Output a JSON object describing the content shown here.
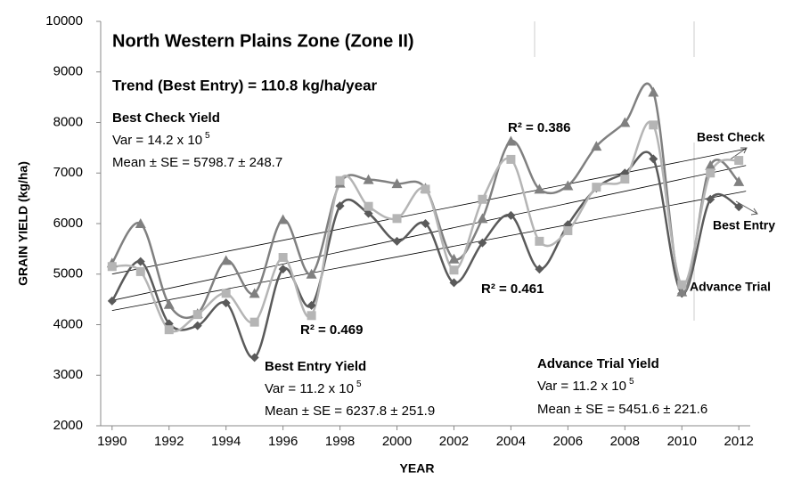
{
  "chart_data": {
    "type": "line",
    "title": "North Western Plains Zone (Zone  II)",
    "subtitle": "Trend (Best Entry) = 110.8 kg/ha/year",
    "y_label": "GRAIN YIELD (kg/ha)",
    "x_label": "YEAR",
    "x": [
      1990,
      1991,
      1992,
      1993,
      1994,
      1995,
      1996,
      1997,
      1998,
      1999,
      2000,
      2001,
      2002,
      2003,
      2004,
      2005,
      2006,
      2007,
      2008,
      2009,
      2010,
      2011,
      2012
    ],
    "series": [
      {
        "name": "Advance Trial",
        "color": "#5a5a5a",
        "marker": "diamond",
        "values": [
          4470,
          5250,
          4020,
          3980,
          4430,
          3350,
          5100,
          4380,
          6350,
          6200,
          5650,
          6000,
          4830,
          5620,
          6160,
          5100,
          5980,
          6700,
          7000,
          7280,
          4620,
          6480,
          6330
        ]
      },
      {
        "name": "Best Entry",
        "color": "#808080",
        "marker": "triangle",
        "values": [
          5220,
          6000,
          4400,
          4220,
          5270,
          4620,
          6080,
          5000,
          6800,
          6870,
          6790,
          6700,
          5300,
          6100,
          7630,
          6680,
          6750,
          7530,
          8000,
          8600,
          4650,
          7150,
          6830
        ]
      },
      {
        "name": "Best Check",
        "color": "#b5b5b5",
        "marker": "square",
        "values": [
          5150,
          5050,
          3900,
          4200,
          4620,
          4050,
          5330,
          4180,
          6850,
          6340,
          6100,
          6680,
          5080,
          6480,
          7270,
          5650,
          5860,
          6720,
          6880,
          7950,
          4790,
          7000,
          7250
        ]
      }
    ],
    "xlim": [
      1989.6,
      2012.4
    ],
    "xticks": [
      1990,
      1992,
      1994,
      1996,
      1998,
      2000,
      2002,
      2004,
      2006,
      2008,
      2010,
      2012
    ],
    "ylim": [
      2000,
      10000
    ],
    "yticks": [
      2000,
      3000,
      4000,
      5000,
      6000,
      7000,
      8000,
      9000,
      10000
    ],
    "blocks": [
      {
        "title": "Best Check  Yield",
        "var": "Var = 14.2 x 10",
        "var_exp": "5",
        "mean": "Mean  ± SE = 5798.7 ± 248.7"
      },
      {
        "title": "Best Entry Yield",
        "var": "Var = 11.2 x 10",
        "var_exp": "5",
        "mean": "Mean  ± SE = 6237.8 ± 251.9"
      },
      {
        "title": "Advance Trial Yield",
        "var": "Var = 11.2 x 10",
        "var_exp": "5",
        "mean": "Mean  ± SE = 5451.6 ± 221.6"
      }
    ],
    "r2_labels": [
      "R² = 0.386",
      "R² = 0.461",
      "R² = 0.469"
    ]
  }
}
